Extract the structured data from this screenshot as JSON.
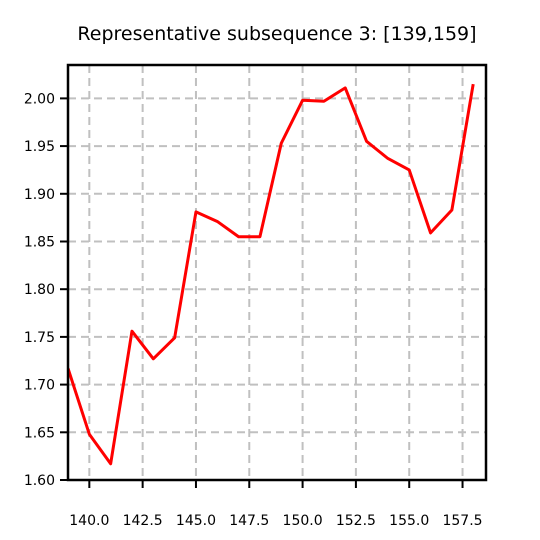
{
  "chart_data": {
    "type": "line",
    "title": "Representative subsequence 3: [139,159]",
    "xlabel": "",
    "ylabel": "",
    "xlim": [
      139,
      158.6
    ],
    "ylim": [
      1.6,
      2.035
    ],
    "xticks": [
      140.0,
      142.5,
      145.0,
      147.5,
      150.0,
      152.5,
      155.0,
      157.5
    ],
    "xtick_labels": [
      "140.0",
      "142.5",
      "145.0",
      "147.5",
      "150.0",
      "152.5",
      "155.0",
      "157.5"
    ],
    "yticks": [
      1.6,
      1.65,
      1.7,
      1.75,
      1.8,
      1.85,
      1.9,
      1.95,
      2.0
    ],
    "ytick_labels": [
      "1.60",
      "1.65",
      "1.70",
      "1.75",
      "1.80",
      "1.85",
      "1.90",
      "1.95",
      "2.00"
    ],
    "grid": true,
    "series": [
      {
        "color": "#ff0000",
        "x": [
          139,
          140,
          141,
          142,
          143,
          144,
          145,
          146,
          147,
          148,
          149,
          150,
          151,
          152,
          153,
          154,
          155,
          156,
          157,
          158
        ],
        "y": [
          1.717,
          1.648,
          1.617,
          1.756,
          1.727,
          1.749,
          1.881,
          1.871,
          1.855,
          1.855,
          1.953,
          1.998,
          1.997,
          2.011,
          1.955,
          1.937,
          1.925,
          1.859,
          1.883,
          2.015
        ]
      }
    ]
  }
}
